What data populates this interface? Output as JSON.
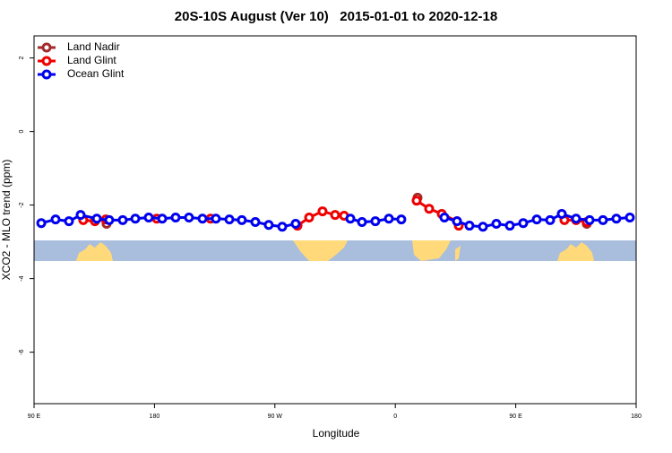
{
  "chart_data": {
    "type": "line",
    "title": "20S-10S August (Ver 10)   2015-01-01 to 2020-12-18",
    "x_label": "Longitude",
    "y_label": "XCO2 - MLO trend (ppm)",
    "xlim": [
      90,
      540
    ],
    "ylim": [
      -7.4,
      2.6
    ],
    "xticks": [
      {
        "value": 90,
        "label": "90 E"
      },
      {
        "value": 180,
        "label": "180"
      },
      {
        "value": 270,
        "label": "90 W"
      },
      {
        "value": 360,
        "label": "0"
      },
      {
        "value": 450,
        "label": "90 E"
      },
      {
        "value": 540,
        "label": "180"
      }
    ],
    "yticks": [
      2,
      0,
      -2,
      -4,
      -6
    ],
    "legend": "top-left",
    "series": [
      {
        "name": "Land Nadir",
        "color": "#a52a2a",
        "x": [
          144.2,
          300,
          376.6,
          450,
          503.1
        ],
        "values": [
          -2.51,
          null,
          -1.8,
          null,
          -2.51
        ]
      },
      {
        "name": "Land Glint",
        "color": "#ee0000",
        "x": [
          126.8,
          135.5,
          143.6,
          160,
          181.7,
          200,
          221.9,
          260,
          286.9,
          295.6,
          305.6,
          315.0,
          321.7,
          340,
          375.9,
          385.3,
          394.7,
          406.1,
          407.4,
          450,
          486.4,
          495.1,
          503.1
        ],
        "values": [
          -2.41,
          -2.44,
          -2.39,
          null,
          -2.37,
          null,
          -2.37,
          null,
          -2.56,
          -2.34,
          -2.17,
          -2.27,
          -2.29,
          null,
          -1.88,
          -2.1,
          -2.24,
          -2.44,
          -2.56,
          null,
          -2.41,
          -2.41,
          -2.46
        ]
      },
      {
        "name": "Ocean Glint",
        "color": "#0000ee",
        "x": [
          95.4,
          106.1,
          116.1,
          124.8,
          136.9,
          146.2,
          156.3,
          165.7,
          175.7,
          185.8,
          195.8,
          205.8,
          215.9,
          225.9,
          236.0,
          245.3,
          255.4,
          265.4,
          275.5,
          285.5,
          300,
          326.4,
          335.1,
          345.1,
          355.2,
          364.5,
          380,
          396.7,
          406.1,
          415.4,
          425.5,
          435.5,
          445.6,
          455.6,
          465.7,
          475.7,
          484.4,
          495.1,
          505.2,
          515.2,
          525.2,
          535.3
        ],
        "values": [
          -2.49,
          -2.39,
          -2.44,
          -2.27,
          -2.37,
          -2.41,
          -2.41,
          -2.37,
          -2.34,
          -2.37,
          -2.34,
          -2.34,
          -2.37,
          -2.37,
          -2.39,
          -2.41,
          -2.46,
          -2.54,
          -2.59,
          -2.51,
          null,
          -2.37,
          -2.46,
          -2.44,
          -2.37,
          -2.39,
          null,
          -2.34,
          -2.44,
          -2.56,
          -2.59,
          -2.51,
          -2.56,
          -2.49,
          -2.39,
          -2.41,
          -2.24,
          -2.37,
          -2.41,
          -2.41,
          -2.37,
          -2.34
        ]
      }
    ]
  }
}
